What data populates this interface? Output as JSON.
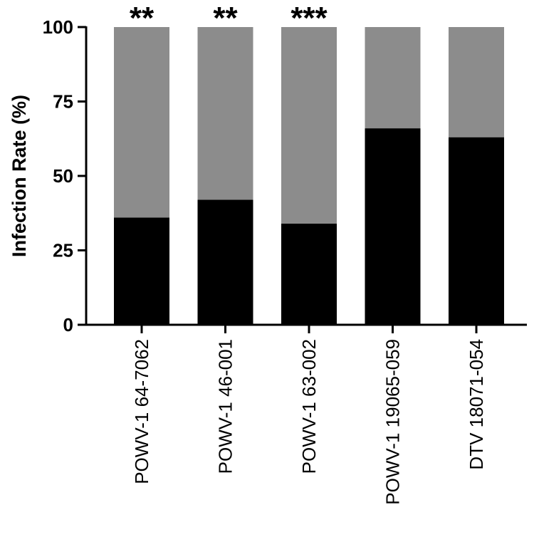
{
  "chart_data": {
    "type": "bar",
    "stacked": true,
    "ylabel": "Infection Rate (%)",
    "ylim": [
      0,
      100
    ],
    "yticks": [
      0,
      25,
      50,
      75,
      100
    ],
    "categories": [
      "POWV-1 64-7062",
      "POWV-1 46-001",
      "POWV-1 63-002",
      "POWV-1 19065-059",
      "DTV 18071-054"
    ],
    "series": [
      {
        "values": [
          36,
          42,
          34,
          66,
          63
        ],
        "color": "#000000"
      },
      {
        "values": [
          64,
          58,
          66,
          34,
          37
        ],
        "color": "#8c8c8c"
      }
    ],
    "annotations": [
      "**",
      "**",
      "***",
      "",
      ""
    ]
  }
}
